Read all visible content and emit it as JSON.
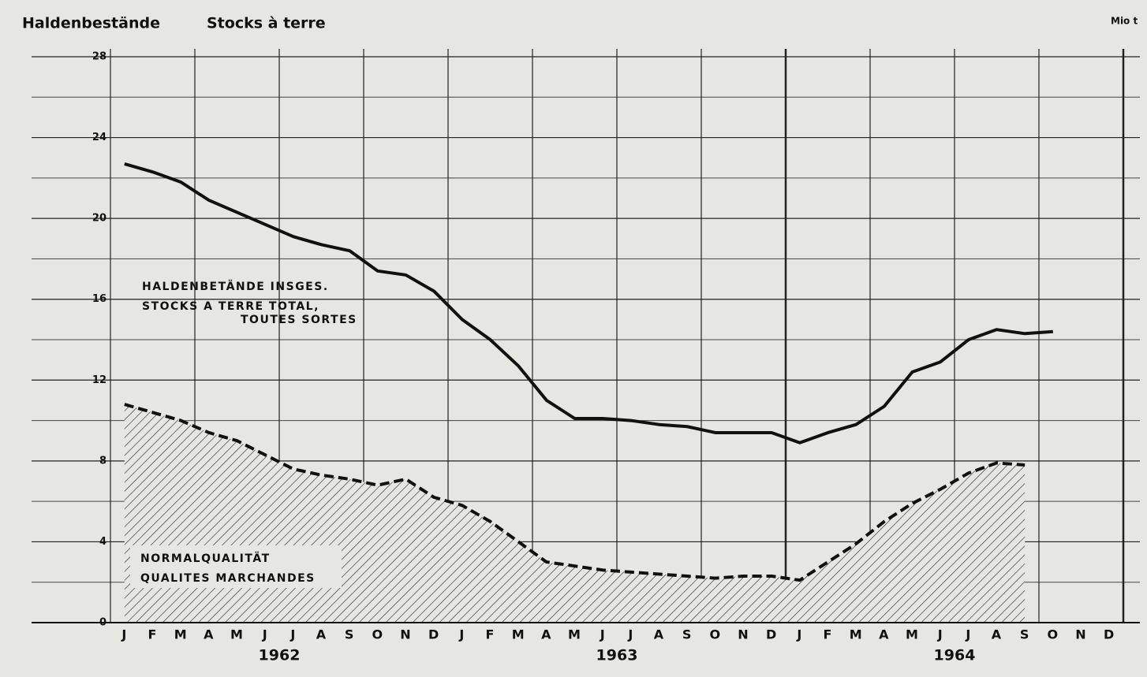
{
  "chart_data": {
    "type": "line",
    "title": "Haldenbestände",
    "subtitle": "Stocks à terre",
    "unit_label": "Mio t",
    "categories": [
      "J",
      "F",
      "M",
      "A",
      "M",
      "J",
      "J",
      "A",
      "S",
      "O",
      "N",
      "D",
      "J",
      "F",
      "M",
      "A",
      "M",
      "J",
      "J",
      "A",
      "S",
      "O",
      "N",
      "D",
      "J",
      "F",
      "M",
      "A",
      "M",
      "J",
      "J",
      "A",
      "S",
      "O",
      "N",
      "D"
    ],
    "years": [
      "1962",
      "1963",
      "1964"
    ],
    "series": [
      {
        "name": "HALDENBETÄNDE INSGES.",
        "name_lines": [
          "STOCKS A TERRE TOTAL,",
          "TOUTES SORTES"
        ],
        "color": "#111111",
        "style": "solid",
        "values": [
          22.7,
          22.3,
          21.8,
          20.9,
          20.3,
          19.7,
          19.1,
          18.7,
          18.4,
          17.4,
          17.2,
          16.4,
          15.0,
          14.0,
          12.7,
          11.0,
          10.1,
          10.1,
          10.0,
          9.8,
          9.7,
          9.4,
          9.4,
          9.4,
          8.9,
          9.4,
          9.8,
          10.7,
          12.4,
          12.9,
          14.0,
          14.5,
          14.3,
          14.4,
          null,
          null
        ]
      },
      {
        "name": "NORMALQUALITÄT",
        "name_lines": [
          "QUALITES MARCHANDES"
        ],
        "color": "#111111",
        "style": "dashed",
        "fill": "hatched",
        "values": [
          10.8,
          10.4,
          10.0,
          9.4,
          9.0,
          8.3,
          7.6,
          7.3,
          7.1,
          6.8,
          7.1,
          6.2,
          5.8,
          5.0,
          4.0,
          3.0,
          2.8,
          2.6,
          2.5,
          2.4,
          2.3,
          2.2,
          2.3,
          2.3,
          2.1,
          3.0,
          3.9,
          5.0,
          5.9,
          6.6,
          7.4,
          7.9,
          7.8,
          null,
          null,
          null
        ]
      }
    ],
    "ylim": [
      0,
      28
    ],
    "yticks": [
      0,
      4,
      8,
      12,
      16,
      20,
      24,
      28
    ],
    "minor_yticks": [
      2,
      6,
      10,
      14,
      18,
      22,
      26
    ],
    "grid": true
  }
}
